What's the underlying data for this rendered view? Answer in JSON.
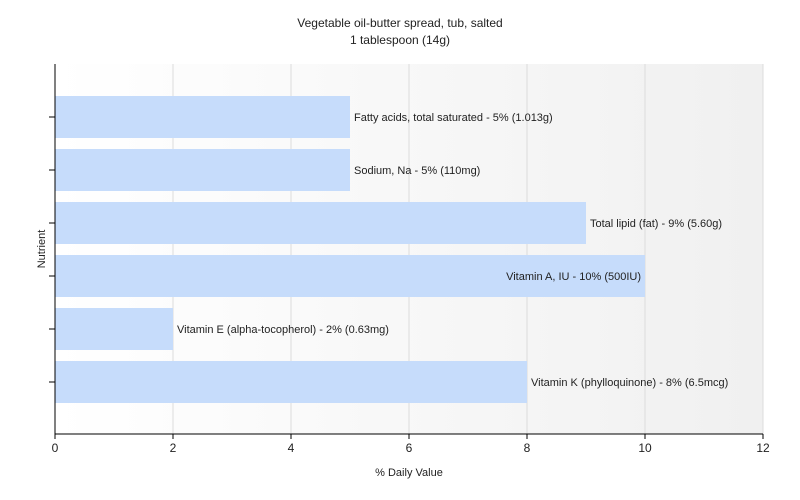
{
  "chart_data": {
    "type": "bar",
    "orientation": "horizontal",
    "title": "Vegetable oil-butter spread, tub, salted",
    "subtitle": "1 tablespoon (14g)",
    "xlabel": "% Daily Value",
    "ylabel": "Nutrient",
    "xlim": [
      0,
      12
    ],
    "xticks": [
      0,
      2,
      4,
      6,
      8,
      10,
      12
    ],
    "grid": "vertical",
    "bar_color": "#c6dcfb",
    "categories": [
      "Fatty acids, total saturated",
      "Sodium, Na",
      "Total lipid (fat)",
      "Vitamin A, IU",
      "Vitamin E (alpha-tocopherol)",
      "Vitamin K (phylloquinone)"
    ],
    "values": [
      5,
      5,
      9,
      10,
      2,
      8
    ],
    "labels": [
      "Fatty acids, total saturated - 5% (1.013g)",
      "Sodium, Na - 5% (110mg)",
      "Total lipid (fat) - 9% (5.60g)",
      "Vitamin A, IU - 10% (500IU)",
      "Vitamin E (alpha-tocopherol) - 2% (0.63mg)",
      "Vitamin K (phylloquinone) - 8% (6.5mcg)"
    ]
  }
}
